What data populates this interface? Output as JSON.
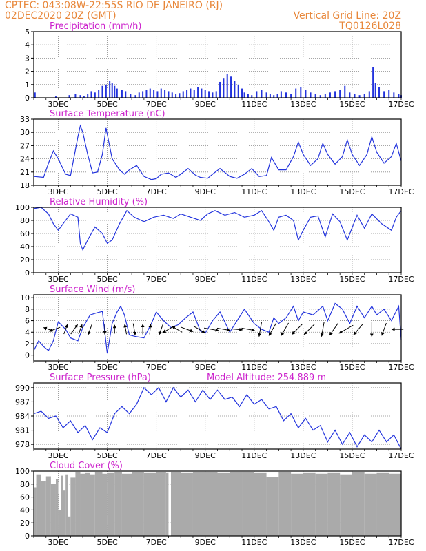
{
  "header": {
    "line1": "CPTEC:   043:08W-22:55S  RIO DE JANEIRO (RJ)",
    "line2": "02DEC2020 20Z (GMT)",
    "grid_note": "Vertical Grid Line: 20Z",
    "run_id": "TQ0126L028"
  },
  "colors": {
    "title": "#cc22cc",
    "header": "#e8873a",
    "line": "#2233dd",
    "bar": "#2233dd",
    "cloud": "#aaaaaa"
  },
  "x_axis": {
    "tick_labels": [
      "3DEC",
      "5DEC",
      "7DEC",
      "9DEC",
      "11DEC",
      "13DEC",
      "15DEC",
      "17DEC"
    ],
    "range_days": [
      0,
      15
    ],
    "tick_days": [
      1,
      3,
      5,
      7,
      9,
      11,
      13,
      15
    ]
  },
  "chart_data": [
    {
      "type": "bar",
      "title": "Precipitation (mm/h)",
      "ylim": [
        0,
        5
      ],
      "yticks": [
        0,
        1,
        2,
        3,
        4,
        5
      ],
      "x": [
        0.05,
        0.9,
        1.45,
        1.7,
        1.9,
        2.05,
        2.2,
        2.35,
        2.5,
        2.65,
        2.8,
        2.95,
        3.1,
        3.2,
        3.3,
        3.4,
        3.6,
        3.75,
        3.95,
        4.15,
        4.3,
        4.45,
        4.6,
        4.75,
        4.9,
        5.05,
        5.2,
        5.35,
        5.5,
        5.65,
        5.8,
        5.95,
        6.1,
        6.25,
        6.4,
        6.55,
        6.7,
        6.85,
        7.0,
        7.15,
        7.3,
        7.45,
        7.6,
        7.75,
        7.9,
        8.05,
        8.2,
        8.35,
        8.5,
        8.6,
        8.75,
        8.9,
        9.1,
        9.3,
        9.5,
        9.65,
        9.8,
        9.95,
        10.1,
        10.3,
        10.5,
        10.7,
        10.9,
        11.1,
        11.3,
        11.5,
        11.7,
        11.9,
        12.1,
        12.3,
        12.5,
        12.7,
        12.9,
        13.1,
        13.3,
        13.5,
        13.7,
        13.85,
        13.95,
        14.1,
        14.3,
        14.5,
        14.7,
        14.9,
        15.0
      ],
      "values": [
        0.4,
        0.1,
        0.2,
        0.3,
        0.2,
        0.15,
        0.3,
        0.5,
        0.4,
        0.6,
        0.9,
        1.0,
        1.3,
        1.1,
        0.9,
        0.7,
        0.6,
        0.5,
        0.3,
        0.2,
        0.4,
        0.5,
        0.6,
        0.7,
        0.6,
        0.5,
        0.7,
        0.6,
        0.5,
        0.4,
        0.3,
        0.35,
        0.5,
        0.6,
        0.7,
        0.6,
        0.8,
        0.7,
        0.6,
        0.5,
        0.4,
        0.5,
        1.2,
        1.5,
        1.8,
        1.6,
        1.3,
        1.0,
        0.7,
        0.4,
        0.3,
        0.2,
        0.5,
        0.6,
        0.4,
        0.3,
        0.2,
        0.3,
        0.5,
        0.4,
        0.3,
        0.7,
        0.8,
        0.6,
        0.4,
        0.3,
        0.2,
        0.3,
        0.4,
        0.5,
        0.6,
        0.9,
        0.4,
        0.3,
        0.2,
        0.3,
        0.5,
        2.3,
        1.1,
        0.8,
        0.5,
        0.6,
        0.4,
        0.3,
        0.2
      ]
    },
    {
      "type": "line",
      "title": "Surface Temperature (nC)",
      "ylim": [
        18,
        33
      ],
      "yticks": [
        18,
        21,
        24,
        27,
        30,
        33
      ],
      "x": [
        0,
        0.4,
        0.6,
        0.8,
        1.0,
        1.3,
        1.5,
        1.8,
        1.9,
        2.0,
        2.2,
        2.4,
        2.6,
        2.8,
        2.95,
        3.2,
        3.5,
        3.7,
        3.9,
        4.2,
        4.5,
        4.8,
        5.0,
        5.2,
        5.5,
        5.8,
        6.0,
        6.3,
        6.6,
        6.8,
        7.1,
        7.3,
        7.6,
        8.0,
        8.3,
        8.6,
        8.9,
        9.2,
        9.5,
        9.7,
        10.0,
        10.3,
        10.6,
        10.8,
        11.0,
        11.3,
        11.6,
        11.8,
        12.0,
        12.3,
        12.6,
        12.8,
        13.0,
        13.3,
        13.6,
        13.8,
        14.0,
        14.3,
        14.6,
        14.8,
        15.0
      ],
      "values": [
        20,
        19.8,
        23,
        25.8,
        24,
        20.5,
        20.2,
        29,
        31.5,
        30,
        25,
        20.8,
        21,
        25,
        31,
        24,
        21.5,
        20.5,
        21.5,
        22.5,
        20,
        19.3,
        19.5,
        20.5,
        20.8,
        19.8,
        20.5,
        21.8,
        20.3,
        19.8,
        19.6,
        20.5,
        21.8,
        20.0,
        19.6,
        20.5,
        21.8,
        20.0,
        20.2,
        24.3,
        21.5,
        21.5,
        24.5,
        27.8,
        25.0,
        22.5,
        24,
        27.5,
        25,
        22.8,
        24.5,
        28.3,
        25,
        22.5,
        25,
        29,
        25.5,
        23,
        24.5,
        27.5,
        23.5
      ]
    },
    {
      "type": "line",
      "title": "Relative Humidity (%)",
      "ylim": [
        0,
        100
      ],
      "yticks": [
        0,
        20,
        40,
        60,
        80,
        100
      ],
      "x": [
        0,
        0.3,
        0.6,
        0.8,
        1.0,
        1.2,
        1.5,
        1.8,
        1.9,
        2.0,
        2.2,
        2.5,
        2.8,
        3.0,
        3.2,
        3.5,
        3.8,
        4.1,
        4.5,
        4.9,
        5.3,
        5.7,
        6.0,
        6.4,
        6.8,
        7.1,
        7.4,
        7.8,
        8.2,
        8.6,
        9.0,
        9.3,
        9.6,
        9.8,
        10.0,
        10.3,
        10.6,
        10.8,
        11.0,
        11.3,
        11.6,
        11.9,
        12.2,
        12.5,
        12.8,
        13.2,
        13.5,
        13.8,
        14.2,
        14.6,
        14.8,
        15.0
      ],
      "values": [
        98,
        100,
        90,
        75,
        65,
        75,
        90,
        85,
        45,
        35,
        50,
        70,
        60,
        45,
        50,
        75,
        95,
        85,
        78,
        85,
        88,
        83,
        90,
        85,
        80,
        90,
        95,
        88,
        92,
        85,
        88,
        95,
        78,
        65,
        85,
        88,
        80,
        50,
        65,
        85,
        87,
        55,
        90,
        78,
        50,
        88,
        68,
        90,
        75,
        65,
        85,
        95
      ]
    },
    {
      "type": "line",
      "title": "Surface Wind (m/s)",
      "ylim": [
        -1,
        10.5
      ],
      "yticks": [
        0,
        2,
        4,
        6,
        8,
        10
      ],
      "x": [
        0,
        0.2,
        0.4,
        0.6,
        0.8,
        1.0,
        1.3,
        1.5,
        1.8,
        2.0,
        2.3,
        2.6,
        2.8,
        3.0,
        3.2,
        3.4,
        3.55,
        3.7,
        3.9,
        4.2,
        4.5,
        4.8,
        5.0,
        5.3,
        5.6,
        5.9,
        6.2,
        6.5,
        6.8,
        7.0,
        7.3,
        7.6,
        8.0,
        8.3,
        8.6,
        9.0,
        9.3,
        9.6,
        9.8,
        10.0,
        10.3,
        10.6,
        10.8,
        11.0,
        11.4,
        11.8,
        12.0,
        12.3,
        12.6,
        12.9,
        13.2,
        13.5,
        13.8,
        14.0,
        14.3,
        14.6,
        14.9,
        15.0
      ],
      "values": [
        0.8,
        2.5,
        1.5,
        0.8,
        2.5,
        5.8,
        4.5,
        3.0,
        2.5,
        4.8,
        7.0,
        7.4,
        7.6,
        0.3,
        5.5,
        7.5,
        8.5,
        7.0,
        3.5,
        3.2,
        3.0,
        5.5,
        7.5,
        6.0,
        4.8,
        5.3,
        6.5,
        7.5,
        4.2,
        3.8,
        6.0,
        7.5,
        4.0,
        6.0,
        8.0,
        5.5,
        4.5,
        4.0,
        6.5,
        5.5,
        6.5,
        8.5,
        6.0,
        7.5,
        7.0,
        8.5,
        6.0,
        9.0,
        8.0,
        5.5,
        8.5,
        6.5,
        8.5,
        7.0,
        8.0,
        6.0,
        8.5,
        2.7
      ]
    },
    {
      "type": "line",
      "title": "Surface Pressure (hPa)",
      "subtitle": "Model Altitude: 254.889 m",
      "ylim": [
        977,
        991
      ],
      "yticks": [
        978,
        981,
        984,
        987,
        990
      ],
      "x": [
        0,
        0.3,
        0.6,
        0.9,
        1.2,
        1.5,
        1.8,
        2.1,
        2.4,
        2.7,
        3.0,
        3.3,
        3.6,
        3.9,
        4.2,
        4.5,
        4.8,
        5.1,
        5.4,
        5.7,
        6.0,
        6.3,
        6.6,
        6.9,
        7.2,
        7.5,
        7.8,
        8.1,
        8.4,
        8.7,
        9.0,
        9.3,
        9.6,
        9.9,
        10.2,
        10.5,
        10.8,
        11.1,
        11.4,
        11.7,
        12.0,
        12.3,
        12.6,
        12.9,
        13.2,
        13.5,
        13.8,
        14.1,
        14.4,
        14.7,
        15.0
      ],
      "values": [
        984.5,
        985,
        983.5,
        984,
        981.5,
        983,
        980.5,
        982,
        979,
        981.5,
        980.5,
        984.5,
        986,
        984.5,
        986.5,
        990,
        988.5,
        990,
        987,
        990,
        988,
        989.5,
        987,
        989.5,
        987.5,
        989.5,
        987.5,
        988,
        986,
        988.5,
        986.5,
        987.5,
        985.5,
        986,
        983,
        984.5,
        981.5,
        983.5,
        981,
        982,
        978.5,
        981,
        978,
        980.5,
        977.5,
        980,
        978.5,
        981,
        978.5,
        980,
        977
      ]
    },
    {
      "type": "area",
      "title": "Cloud Cover (%)",
      "ylim": [
        0,
        100
      ],
      "yticks": [
        0,
        20,
        40,
        60,
        80,
        100
      ],
      "x": [
        0,
        0.1,
        0.3,
        0.5,
        0.7,
        0.9,
        1.0,
        1.1,
        1.2,
        1.3,
        1.4,
        1.5,
        1.7,
        1.9,
        2.1,
        2.3,
        2.5,
        2.8,
        3.0,
        3.3,
        3.6,
        4.0,
        4.5,
        5.0,
        5.4,
        5.5,
        5.6,
        6.0,
        6.5,
        7.0,
        7.5,
        8.0,
        8.5,
        9.0,
        9.5,
        10.0,
        10.5,
        11.0,
        11.5,
        12.0,
        12.5,
        13.0,
        13.5,
        14.0,
        14.5,
        15.0
      ],
      "values": [
        75,
        95,
        85,
        92,
        80,
        88,
        40,
        93,
        70,
        95,
        30,
        90,
        98,
        96,
        97,
        95,
        98,
        96,
        97,
        98,
        96,
        98,
        97,
        98,
        97,
        0,
        98,
        97,
        98,
        98,
        97,
        98,
        98,
        97,
        91,
        98,
        96,
        97,
        96,
        97,
        95,
        98,
        96,
        97,
        96,
        98
      ]
    }
  ],
  "wind_arrows": {
    "x": [
      0.6,
      0.85,
      1.3,
      1.65,
      1.9,
      2.3,
      2.9,
      3.3,
      3.75,
      4.1,
      4.45,
      4.75,
      5.2,
      5.5,
      5.85,
      6.25,
      6.75,
      7.25,
      7.75,
      8.25,
      8.75,
      9.25,
      9.75,
      10.25,
      10.75,
      11.25,
      11.8,
      12.25,
      12.75,
      13.25,
      13.8,
      14.3,
      14.85
    ],
    "dir_deg": [
      290,
      250,
      20,
      35,
      20,
      200,
      180,
      0,
      350,
      170,
      0,
      5,
      200,
      240,
      300,
      110,
      120,
      100,
      100,
      95,
      100,
      190,
      210,
      210,
      225,
      225,
      190,
      215,
      240,
      220,
      180,
      200,
      270
    ],
    "speed": [
      4,
      5,
      4,
      5,
      4,
      5,
      4,
      3,
      4,
      5,
      4,
      4,
      5,
      6,
      5,
      6,
      6,
      7,
      6,
      6,
      6,
      7,
      7,
      7,
      7,
      7,
      7,
      7,
      8,
      7,
      7,
      6,
      5
    ]
  }
}
